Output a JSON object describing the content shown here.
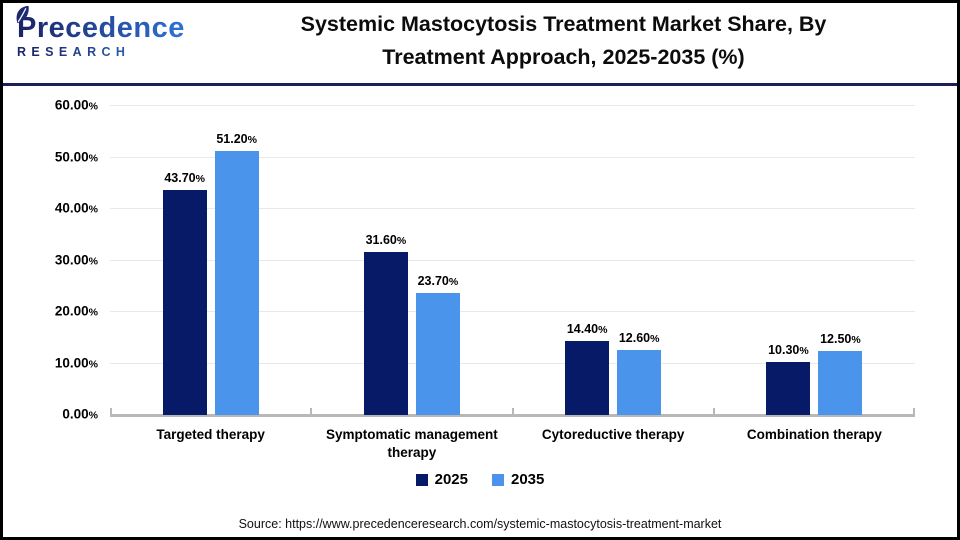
{
  "header": {
    "logo": {
      "brand": "Precedence",
      "sub": "RESEARCH"
    },
    "title_line1": "Systemic Mastocytosis Treatment Market Share, By",
    "title_line2": "Treatment Approach, 2025-2035 (%)"
  },
  "chart_data": {
    "type": "bar",
    "title": "Systemic Mastocytosis Treatment Market Share, By Treatment Approach, 2025-2035 (%)",
    "categories": [
      "Targeted therapy",
      "Symptomatic management therapy",
      "Cytoreductive therapy",
      "Combination therapy"
    ],
    "series": [
      {
        "name": "2025",
        "color": "#071A67",
        "values": [
          43.7,
          31.6,
          14.4,
          10.3
        ]
      },
      {
        "name": "2035",
        "color": "#4A94EB",
        "values": [
          51.2,
          23.7,
          12.6,
          12.5
        ]
      }
    ],
    "value_suffix": "%",
    "ylim": [
      0,
      60
    ],
    "ytick_step": 10,
    "ytick_labels": [
      "0.00%",
      "10.00%",
      "20.00%",
      "30.00%",
      "40.00%",
      "50.00%",
      "60.00%"
    ],
    "grid": true,
    "legend_position": "bottom",
    "colors": {
      "grid": "#e9e9e9",
      "axis": "#b8b8b8",
      "header_rule": "#1b2157"
    }
  },
  "footer": {
    "source": "Source: https://www.precedenceresearch.com/systemic-mastocytosis-treatment-market"
  }
}
